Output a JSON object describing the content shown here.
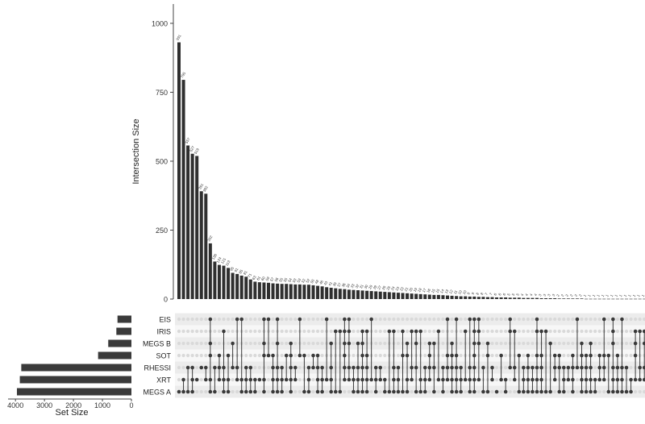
{
  "chart_data": {
    "type": "bar",
    "subtype": "upset",
    "ylabel": "Intersection Size",
    "xlabel": "",
    "ylim": [
      0,
      1070
    ],
    "y_ticks": [
      0,
      250,
      500,
      750,
      1000
    ],
    "set_size_label": "Set Size",
    "set_size_ticks": [
      4000,
      3000,
      2000,
      1000,
      0
    ],
    "set_size_lim": [
      0,
      4200
    ],
    "sets": [
      "EIS",
      "IRIS",
      "MEGS B",
      "SOT",
      "RHESSI",
      "XRT",
      "MEGS A"
    ],
    "set_sizes": [
      480,
      520,
      800,
      1150,
      3800,
      3850,
      3950
    ],
    "intersection_sizes": [
      931,
      795,
      557,
      527,
      519,
      391,
      382,
      202,
      136,
      124,
      121,
      113,
      95,
      91,
      85,
      81,
      71,
      63,
      61,
      60,
      59,
      57,
      56,
      55,
      55,
      54,
      53,
      53,
      52,
      52,
      50,
      48,
      46,
      43,
      41,
      39,
      37,
      36,
      34,
      33,
      32,
      31,
      30,
      29,
      28,
      27,
      26,
      25,
      24,
      23,
      22,
      21,
      20,
      19,
      18,
      17,
      16,
      15,
      15,
      14,
      13,
      12,
      11,
      10,
      10,
      9,
      9,
      8,
      8,
      7,
      7,
      6,
      6,
      6,
      5,
      5,
      5,
      4,
      4,
      4,
      4,
      3,
      3,
      3,
      3,
      2,
      2,
      2,
      2,
      2,
      2,
      1,
      1,
      1,
      1,
      1,
      1,
      1,
      1,
      1,
      1,
      1,
      1,
      1,
      1
    ]
  }
}
